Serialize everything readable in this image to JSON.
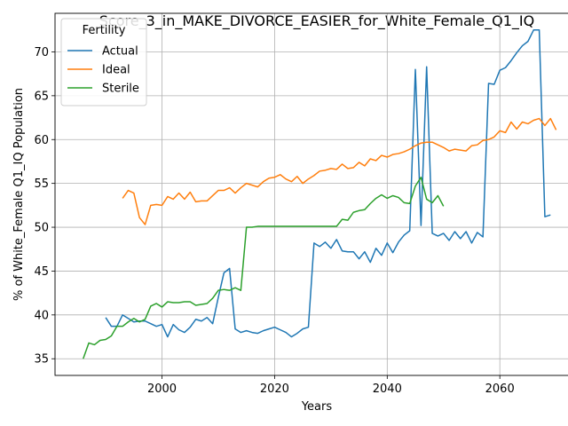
{
  "chart_data": {
    "type": "line",
    "title": "Score_3_in_MAKE_DIVORCE_EASIER_for_White_Female_Q1_IQ",
    "xlabel": "Years",
    "ylabel": "% of White_Female Q1_IQ Population",
    "xlim": [
      1981,
      2074
    ],
    "ylim": [
      33.1,
      74.4
    ],
    "xticks": [
      2000,
      2020,
      2040,
      2060
    ],
    "yticks": [
      35,
      40,
      45,
      50,
      55,
      60,
      65,
      70
    ],
    "grid": true,
    "legend": {
      "title": "Fertility",
      "position": "top-left"
    },
    "series": [
      {
        "name": "Actual",
        "color": "#1f77b4",
        "x": [
          1990,
          1991,
          1992,
          1993,
          1994,
          1995,
          1996,
          1997,
          1998,
          1999,
          2000,
          2001,
          2002,
          2003,
          2004,
          2005,
          2006,
          2007,
          2008,
          2009,
          2010,
          2011,
          2012,
          2013,
          2014,
          2015,
          2016,
          2017,
          2018,
          2019,
          2020,
          2021,
          2022,
          2023,
          2024,
          2025,
          2026,
          2027,
          2028,
          2029,
          2030,
          2031,
          2032,
          2033,
          2034,
          2035,
          2036,
          2037,
          2038,
          2039,
          2040,
          2041,
          2042,
          2043,
          2044,
          2045,
          2046,
          2047,
          2048,
          2049,
          2050,
          2051,
          2052,
          2053,
          2054,
          2055,
          2056,
          2057,
          2058,
          2059,
          2060,
          2061,
          2062,
          2063,
          2064,
          2065,
          2066,
          2067,
          2068,
          2069,
          2070
        ],
        "values": [
          39.7,
          38.7,
          38.7,
          40.0,
          39.6,
          39.2,
          39.3,
          39.3,
          39.0,
          38.7,
          38.9,
          37.5,
          38.9,
          38.3,
          38.0,
          38.6,
          39.5,
          39.3,
          39.7,
          39.0,
          42.0,
          44.8,
          45.3,
          38.4,
          38.0,
          38.2,
          38.0,
          37.9,
          38.2,
          38.4,
          38.6,
          38.3,
          38.0,
          37.5,
          37.9,
          38.4,
          38.6,
          48.2,
          47.8,
          48.3,
          47.6,
          48.6,
          47.3,
          47.2,
          47.2,
          46.4,
          47.2,
          46.0,
          47.6,
          46.8,
          48.2,
          47.1,
          48.3,
          49.1,
          49.6,
          68.0,
          50.2,
          68.3,
          49.3,
          49.0,
          49.3,
          48.5,
          49.5,
          48.7,
          49.5,
          48.2,
          49.4,
          48.9,
          66.4,
          66.3,
          67.9,
          68.2,
          69.0,
          69.9,
          70.7,
          71.2,
          72.5,
          72.5,
          51.2,
          51.4,
          null
        ]
      },
      {
        "name": "Ideal",
        "color": "#ff7f0e",
        "x": [
          1993,
          1994,
          1995,
          1996,
          1997,
          1998,
          1999,
          2000,
          2001,
          2002,
          2003,
          2004,
          2005,
          2006,
          2007,
          2008,
          2009,
          2010,
          2011,
          2012,
          2013,
          2014,
          2015,
          2016,
          2017,
          2018,
          2019,
          2020,
          2021,
          2022,
          2023,
          2024,
          2025,
          2026,
          2027,
          2028,
          2029,
          2030,
          2031,
          2032,
          2033,
          2034,
          2035,
          2036,
          2037,
          2038,
          2039,
          2040,
          2041,
          2042,
          2043,
          2044,
          2045,
          2046,
          2047,
          2048,
          2049,
          2050,
          2051,
          2052,
          2053,
          2054,
          2055,
          2056,
          2057,
          2058,
          2059,
          2060,
          2061,
          2062,
          2063,
          2064,
          2065,
          2066,
          2067,
          2068,
          2069,
          2070
        ],
        "values": [
          53.3,
          54.2,
          53.9,
          51.1,
          50.3,
          52.5,
          52.6,
          52.5,
          53.5,
          53.2,
          53.9,
          53.2,
          54.0,
          52.9,
          53.0,
          53.0,
          53.6,
          54.2,
          54.2,
          54.5,
          53.9,
          54.5,
          55.0,
          54.8,
          54.6,
          55.2,
          55.6,
          55.7,
          56.0,
          55.5,
          55.2,
          55.8,
          55.0,
          55.5,
          55.9,
          56.4,
          56.5,
          56.7,
          56.6,
          57.2,
          56.7,
          56.8,
          57.4,
          57.0,
          57.8,
          57.6,
          58.2,
          58.0,
          58.3,
          58.4,
          58.6,
          58.9,
          59.3,
          59.6,
          59.7,
          59.7,
          59.4,
          59.1,
          58.7,
          58.9,
          58.8,
          58.7,
          59.3,
          59.4,
          59.9,
          60.0,
          60.3,
          61.0,
          60.8,
          62.0,
          61.2,
          62.0,
          61.8,
          62.2,
          62.4,
          61.6,
          62.4,
          61.1
        ]
      },
      {
        "name": "Sterile",
        "color": "#2ca02c",
        "x": [
          1986,
          1987,
          1988,
          1989,
          1990,
          1991,
          1992,
          1993,
          1994,
          1995,
          1996,
          1997,
          1998,
          1999,
          2000,
          2001,
          2002,
          2003,
          2004,
          2005,
          2006,
          2007,
          2008,
          2009,
          2010,
          2011,
          2012,
          2013,
          2014,
          2015,
          2016,
          2017,
          2018,
          2019,
          2020,
          2021,
          2022,
          2023,
          2024,
          2025,
          2026,
          2027,
          2028,
          2029,
          2030,
          2031,
          2032,
          2033,
          2034,
          2035,
          2036,
          2037,
          2038,
          2039,
          2040,
          2041,
          2042,
          2043,
          2044,
          2045,
          2046,
          2047,
          2048,
          2049,
          2050
        ],
        "values": [
          35.0,
          36.8,
          36.6,
          37.1,
          37.2,
          37.6,
          38.7,
          38.7,
          39.2,
          39.6,
          39.2,
          39.5,
          41.0,
          41.3,
          40.9,
          41.5,
          41.4,
          41.4,
          41.5,
          41.5,
          41.1,
          41.2,
          41.3,
          41.9,
          42.8,
          42.9,
          42.8,
          43.1,
          42.8,
          50.0,
          50.0,
          50.1,
          50.1,
          50.1,
          50.1,
          50.1,
          50.1,
          50.1,
          50.1,
          50.1,
          50.1,
          50.1,
          50.1,
          50.1,
          50.1,
          50.1,
          50.9,
          50.8,
          51.7,
          51.9,
          52.0,
          52.7,
          53.3,
          53.7,
          53.3,
          53.6,
          53.4,
          52.8,
          52.7,
          54.7,
          55.7,
          53.2,
          52.8,
          53.6,
          52.4
        ]
      }
    ]
  }
}
